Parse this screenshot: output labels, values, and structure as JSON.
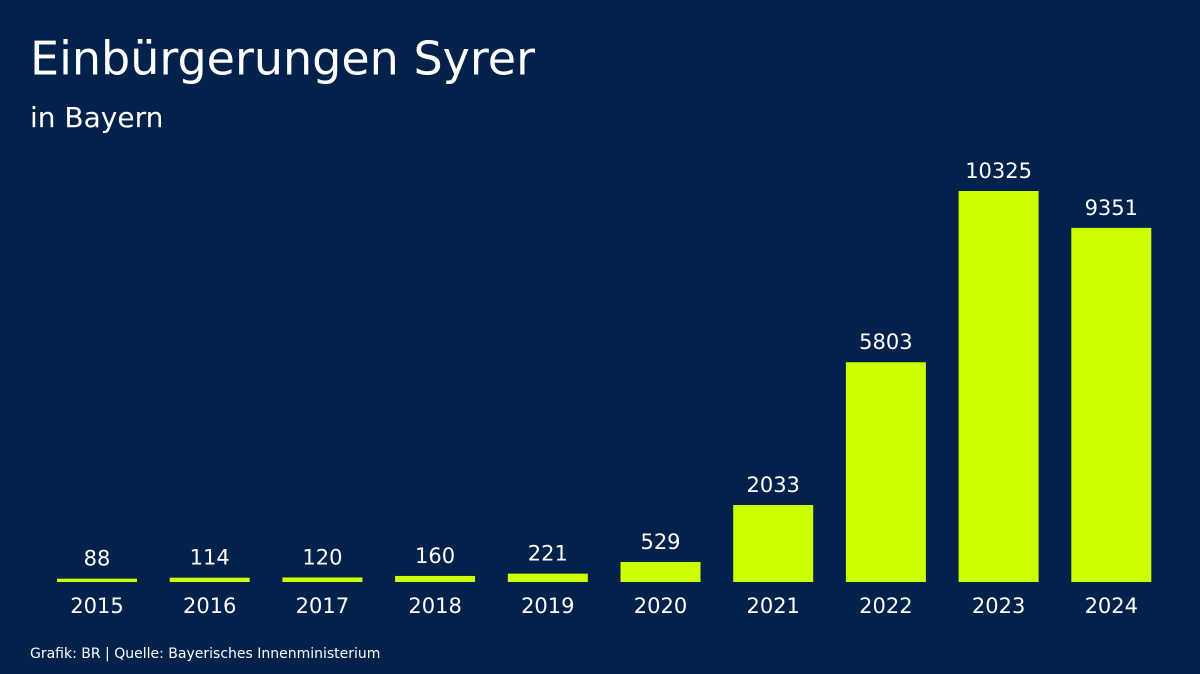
{
  "chart_data": {
    "type": "bar",
    "title": "Einbürgerungen Syrer",
    "subtitle": "in Bayern",
    "source": "Grafik: BR | Quelle: Bayerisches Innenministerium",
    "categories": [
      "2015",
      "2016",
      "2017",
      "2018",
      "2019",
      "2020",
      "2021",
      "2022",
      "2023",
      "2024"
    ],
    "values": [
      88,
      114,
      120,
      160,
      221,
      529,
      2033,
      5803,
      10325,
      9351
    ],
    "color": "#ccff00"
  }
}
